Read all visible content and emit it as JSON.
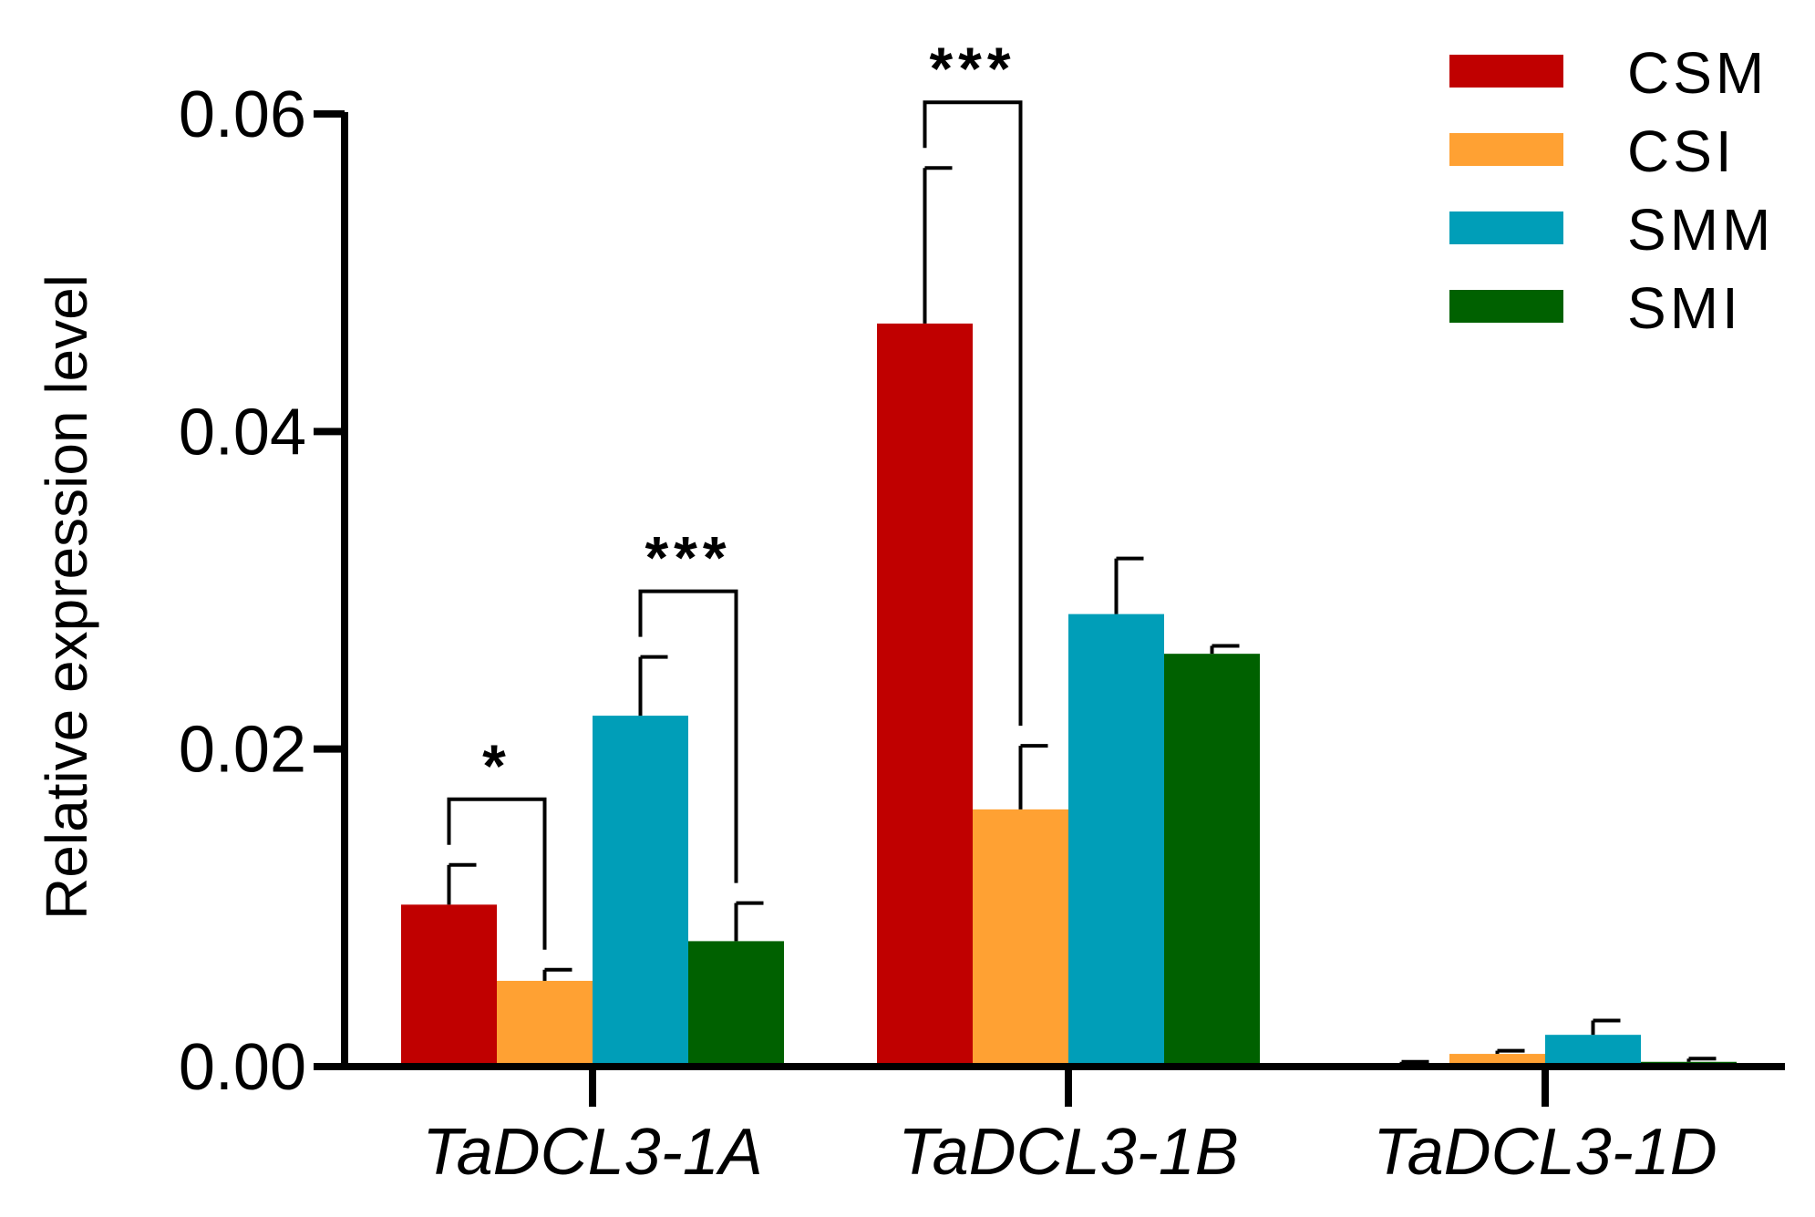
{
  "chart_data": {
    "type": "bar",
    "title": "",
    "xlabel": "",
    "ylabel": "Relative expression level",
    "ylim": [
      0,
      0.06
    ],
    "yticks": [
      0.0,
      0.02,
      0.04,
      0.06
    ],
    "ytick_labels": [
      "0.00",
      "0.02",
      "0.04",
      "0.06"
    ],
    "categories": [
      "TaDCL3-1A",
      "TaDCL3-1B",
      "TaDCL3-1D"
    ],
    "legend_position": "top-right",
    "series": [
      {
        "name": "CSM",
        "color": "#c00000",
        "values": [
          0.0102,
          0.0468,
          0.0002
        ],
        "errors": [
          0.0025,
          0.0098,
          0.0001
        ]
      },
      {
        "name": "CSI",
        "color": "#ffa133",
        "values": [
          0.0054,
          0.0162,
          0.0008
        ],
        "errors": [
          0.0007,
          0.004,
          0.0002
        ]
      },
      {
        "name": "SMM",
        "color": "#009eb8",
        "values": [
          0.0221,
          0.0285,
          0.002
        ],
        "errors": [
          0.0037,
          0.0035,
          0.0009
        ]
      },
      {
        "name": "SMI",
        "color": "#006100",
        "values": [
          0.0079,
          0.026,
          0.0003
        ],
        "errors": [
          0.0024,
          0.0005,
          0.0002
        ]
      }
    ],
    "significance": [
      {
        "category": 0,
        "from": 0,
        "to": 1,
        "label": "*"
      },
      {
        "category": 0,
        "from": 2,
        "to": 3,
        "label": "***"
      },
      {
        "category": 1,
        "from": 0,
        "to": 1,
        "label": "***"
      }
    ]
  }
}
